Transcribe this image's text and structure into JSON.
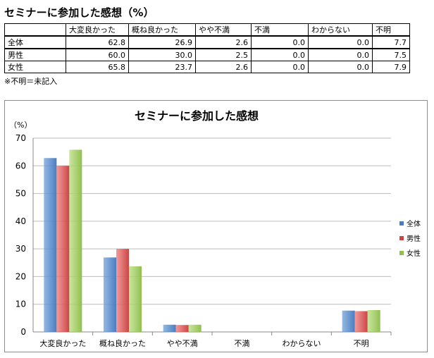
{
  "page_title": "セミナーに参加した感想（%）",
  "table": {
    "columns": [
      "大変良かった",
      "概ね良かった",
      "やや不満",
      "不満",
      "わからない",
      "不明"
    ],
    "rows": [
      {
        "label": "全体",
        "values": [
          "62.8",
          "26.9",
          "2.6",
          "0.0",
          "0.0",
          "7.7"
        ]
      },
      {
        "label": "男性",
        "values": [
          "60.0",
          "30.0",
          "2.5",
          "0.0",
          "0.0",
          "7.5"
        ]
      },
      {
        "label": "女性",
        "values": [
          "65.8",
          "23.7",
          "2.6",
          "0.0",
          "0.0",
          "7.9"
        ]
      }
    ]
  },
  "note": "※不明＝未記入",
  "chart_data": {
    "type": "bar",
    "title": "セミナーに参加した感想",
    "ylabel": "（%）",
    "xlabel": "",
    "ylim": [
      0,
      70
    ],
    "yticks": [
      0,
      10,
      20,
      30,
      40,
      50,
      60,
      70
    ],
    "grid": true,
    "legend_position": "right",
    "categories": [
      "大変良かった",
      "概ね良かった",
      "やや不満",
      "不満",
      "わからない",
      "不明"
    ],
    "series": [
      {
        "name": "全体",
        "values": [
          62.8,
          26.9,
          2.6,
          0.0,
          0.0,
          7.7
        ],
        "color": "#6f9fd8",
        "edge": "#4a7cc0"
      },
      {
        "name": "男性",
        "values": [
          60.0,
          30.0,
          2.5,
          0.0,
          0.0,
          7.5
        ],
        "color": "#ec7777",
        "edge": "#cc4444"
      },
      {
        "name": "女性",
        "values": [
          65.8,
          23.7,
          2.6,
          0.0,
          0.0,
          7.9
        ],
        "color": "#b7dc7d",
        "edge": "#8fbf4f"
      }
    ]
  }
}
